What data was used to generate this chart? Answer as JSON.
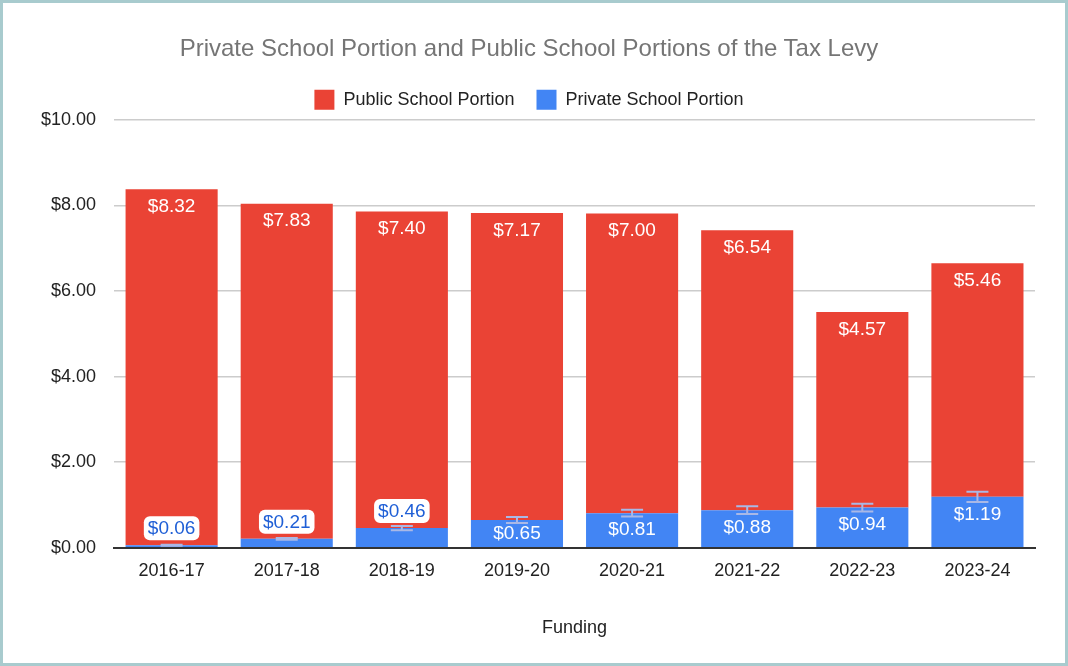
{
  "chart_data": {
    "type": "bar",
    "title": "Private School Portion and Public School Portions of the Tax Levy",
    "xlabel": "Funding",
    "categories": [
      "2016-17",
      "2017-18",
      "2018-19",
      "2019-20",
      "2020-21",
      "2021-22",
      "2022-23",
      "2023-24"
    ],
    "stacked": true,
    "legend": "top",
    "grid": "y",
    "ylim": [
      0,
      10
    ],
    "yticks": [
      {
        "value": 0,
        "label": "$0.00"
      },
      {
        "value": 2,
        "label": "$2.00"
      },
      {
        "value": 4,
        "label": "$4.00"
      },
      {
        "value": 6,
        "label": "$6.00"
      },
      {
        "value": 8,
        "label": "$8.00"
      },
      {
        "value": 10,
        "label": "$10.00"
      }
    ],
    "series": [
      {
        "name": "Private School Portion",
        "color": "#4285f4",
        "values": [
          0.06,
          0.21,
          0.46,
          0.65,
          0.81,
          0.88,
          0.94,
          1.19
        ],
        "value_labels": [
          "$0.06",
          "$0.21",
          "$0.46",
          "$0.65",
          "$0.81",
          "$0.88",
          "$0.94",
          "$1.19"
        ],
        "errors": [
          0.01,
          0.02,
          0.05,
          0.07,
          0.08,
          0.09,
          0.09,
          0.12
        ]
      },
      {
        "name": "Public School Portion",
        "color": "#ea4335",
        "values": [
          8.32,
          7.83,
          7.4,
          7.17,
          7.0,
          6.54,
          4.57,
          5.46
        ],
        "value_labels": [
          "$8.32",
          "$7.83",
          "$7.40",
          "$7.17",
          "$7.00",
          "$6.54",
          "$4.57",
          "$5.46"
        ]
      }
    ]
  }
}
